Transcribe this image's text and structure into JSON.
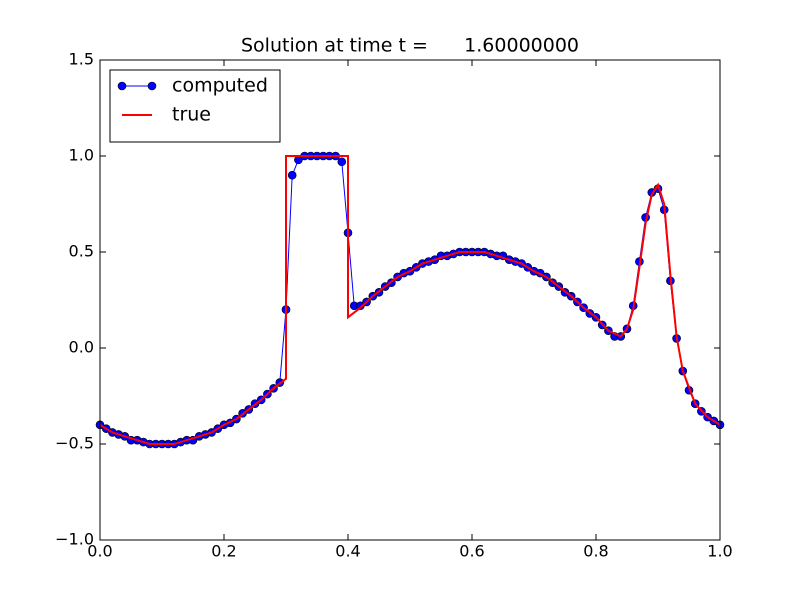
{
  "chart_data": {
    "type": "line",
    "title": "Solution at time t =      1.60000000",
    "legend": "upper left",
    "xlim": [
      0,
      1
    ],
    "ylim": [
      -1,
      1.5
    ],
    "xticks": [
      {
        "value": 0,
        "label": "0.0"
      },
      0.2,
      0.4,
      0.6,
      0.8,
      {
        "value": 1,
        "label": "1.0"
      }
    ],
    "yticks": [
      {
        "value": -1,
        "label": "−1.0"
      },
      {
        "value": -0.5,
        "label": "−0.5"
      },
      {
        "value": 0,
        "label": "0.0"
      },
      0.5,
      {
        "value": 1,
        "label": "1.0"
      },
      1.5
    ],
    "series": [
      {
        "name": "computed",
        "color": "#0000ff",
        "marker": true,
        "x": [
          0,
          0.01,
          0.02,
          0.03,
          0.04,
          0.05,
          0.06,
          0.07,
          0.08,
          0.09,
          0.1,
          0.11,
          0.12,
          0.13,
          0.14,
          0.15,
          0.16,
          0.17,
          0.18,
          0.19,
          0.2,
          0.21,
          0.22,
          0.23,
          0.24,
          0.25,
          0.26,
          0.27,
          0.28,
          0.29,
          0.3,
          0.31,
          0.32,
          0.33,
          0.34,
          0.35,
          0.36,
          0.37,
          0.38,
          0.39,
          0.4,
          0.41,
          0.42,
          0.43,
          0.44,
          0.45,
          0.46,
          0.47,
          0.48,
          0.49,
          0.5,
          0.51,
          0.52,
          0.53,
          0.54,
          0.55,
          0.56,
          0.57,
          0.58,
          0.59,
          0.6,
          0.61,
          0.62,
          0.63,
          0.64,
          0.65,
          0.66,
          0.67,
          0.68,
          0.69,
          0.7,
          0.71,
          0.72,
          0.73,
          0.74,
          0.75,
          0.76,
          0.77,
          0.78,
          0.79,
          0.8,
          0.81,
          0.82,
          0.83,
          0.84,
          0.85,
          0.86,
          0.87,
          0.88,
          0.89,
          0.9,
          0.91,
          0.92,
          0.93,
          0.94,
          0.95,
          0.96,
          0.97,
          0.98,
          0.99,
          1
        ],
        "values": [
          -0.4,
          -0.42,
          -0.44,
          -0.45,
          -0.46,
          -0.48,
          -0.48,
          -0.49,
          -0.5,
          -0.5,
          -0.5,
          -0.5,
          -0.5,
          -0.49,
          -0.48,
          -0.48,
          -0.46,
          -0.45,
          -0.44,
          -0.42,
          -0.4,
          -0.39,
          -0.37,
          -0.34,
          -0.32,
          -0.29,
          -0.27,
          -0.24,
          -0.21,
          -0.18,
          0.2,
          0.9,
          0.98,
          1,
          1,
          1,
          1,
          1,
          1,
          0.97,
          0.6,
          0.22,
          0.22,
          0.24,
          0.27,
          0.29,
          0.32,
          0.34,
          0.37,
          0.39,
          0.4,
          0.42,
          0.44,
          0.45,
          0.46,
          0.48,
          0.48,
          0.49,
          0.5,
          0.5,
          0.5,
          0.5,
          0.5,
          0.49,
          0.48,
          0.48,
          0.46,
          0.45,
          0.44,
          0.42,
          0.4,
          0.39,
          0.37,
          0.34,
          0.32,
          0.29,
          0.27,
          0.24,
          0.21,
          0.18,
          0.16,
          0.12,
          0.09,
          0.06,
          0.06,
          0.1,
          0.22,
          0.45,
          0.68,
          0.81,
          0.83,
          0.72,
          0.35,
          0.05,
          -0.12,
          -0.22,
          -0.29,
          -0.33,
          -0.36,
          -0.38,
          -0.4
        ]
      },
      {
        "name": "true",
        "color": "#ff0000",
        "marker": false,
        "x": [
          0,
          0.02,
          0.04,
          0.06,
          0.08,
          0.1,
          0.12,
          0.14,
          0.16,
          0.18,
          0.2,
          0.22,
          0.24,
          0.26,
          0.28,
          0.3,
          0.3,
          0.4,
          0.4,
          0.42,
          0.44,
          0.46,
          0.48,
          0.5,
          0.52,
          0.54,
          0.56,
          0.58,
          0.6,
          0.62,
          0.64,
          0.66,
          0.68,
          0.7,
          0.72,
          0.74,
          0.76,
          0.78,
          0.8,
          0.82,
          0.84,
          0.85,
          0.86,
          0.87,
          0.88,
          0.89,
          0.9,
          0.91,
          0.92,
          0.93,
          0.94,
          0.96,
          0.98,
          1
        ],
        "values": [
          -0.4,
          -0.44,
          -0.46,
          -0.48,
          -0.5,
          -0.5,
          -0.5,
          -0.48,
          -0.46,
          -0.44,
          -0.4,
          -0.37,
          -0.32,
          -0.27,
          -0.21,
          -0.16,
          1,
          1,
          0.16,
          0.21,
          0.27,
          0.32,
          0.37,
          0.4,
          0.44,
          0.46,
          0.48,
          0.5,
          0.5,
          0.5,
          0.48,
          0.46,
          0.44,
          0.4,
          0.37,
          0.32,
          0.27,
          0.21,
          0.16,
          0.09,
          0.06,
          0.1,
          0.2,
          0.42,
          0.65,
          0.8,
          0.85,
          0.75,
          0.38,
          0.06,
          -0.12,
          -0.29,
          -0.36,
          -0.4
        ]
      }
    ]
  }
}
